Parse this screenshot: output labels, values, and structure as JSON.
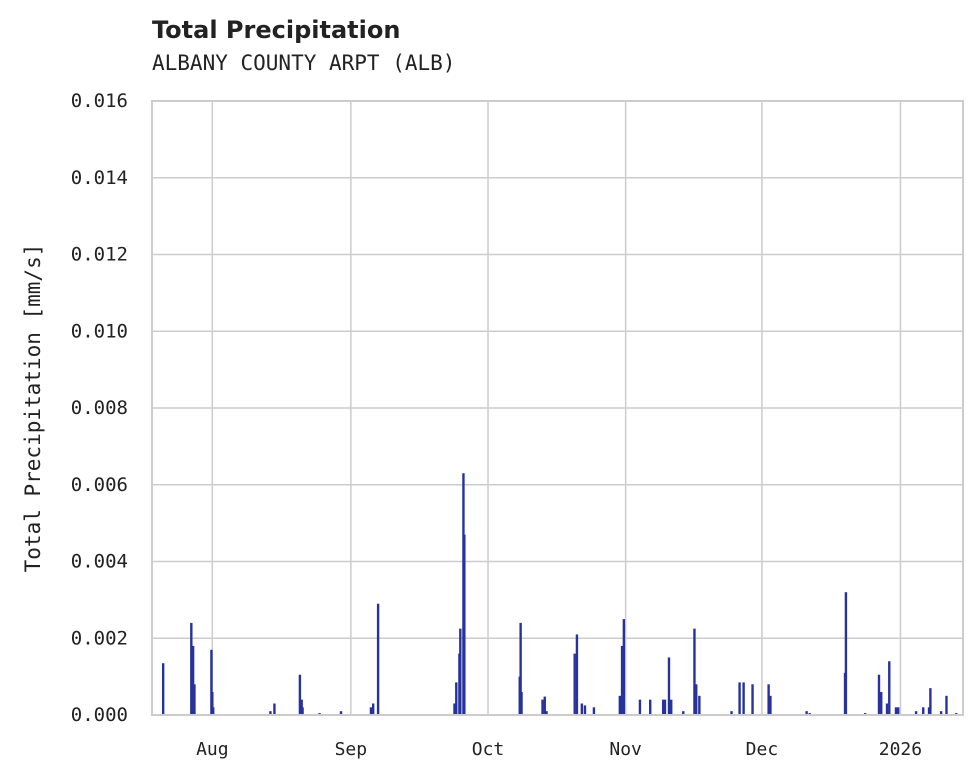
{
  "chart_data": {
    "type": "bar",
    "title": "Total Precipitation",
    "subtitle": "ALBANY COUNTY ARPT (ALB)",
    "xlabel": "",
    "ylabel": "Total Precipitation [mm/s]",
    "x_units": "days since 2025-08-01",
    "xlim": [
      -13.5,
      168
    ],
    "ylim": [
      0,
      0.016
    ],
    "grid": true,
    "color": "#27339a",
    "yticks": [
      "0.000",
      "0.002",
      "0.004",
      "0.006",
      "0.008",
      "0.010",
      "0.012",
      "0.014",
      "0.016"
    ],
    "xticks": [
      {
        "label": "Aug",
        "day": 0
      },
      {
        "label": "Sep",
        "day": 31
      },
      {
        "label": "Oct",
        "day": 61.7
      },
      {
        "label": "Nov",
        "day": 92.5
      },
      {
        "label": "Dec",
        "day": 123
      },
      {
        "label": "2026",
        "day": 154
      }
    ],
    "points": [
      [
        -11.0,
        0.00135
      ],
      [
        -4.7,
        0.0024
      ],
      [
        -4.3,
        0.0018
      ],
      [
        -4.0,
        0.0008
      ],
      [
        -0.2,
        0.0017
      ],
      [
        0,
        0.0006
      ],
      [
        0.2,
        0.0002
      ],
      [
        13.0,
        0.0001
      ],
      [
        13.9,
        0.0003
      ],
      [
        19.6,
        0.00105
      ],
      [
        20.0,
        0.0004
      ],
      [
        20.2,
        0.0002
      ],
      [
        24.0,
        5e-05
      ],
      [
        28.8,
        0.0001
      ],
      [
        35.5,
        0.0002
      ],
      [
        36.0,
        0.0003
      ],
      [
        37.1,
        0.0029
      ],
      [
        54.2,
        0.0003
      ],
      [
        54.6,
        0.00085
      ],
      [
        55.3,
        0.0016
      ],
      [
        55.5,
        0.00225
      ],
      [
        56.2,
        0.0063
      ],
      [
        56.4,
        0.0047
      ],
      [
        68.8,
        0.001
      ],
      [
        69.0,
        0.0024
      ],
      [
        69.2,
        0.0006
      ],
      [
        73.9,
        0.0004
      ],
      [
        74.4,
        0.00048
      ],
      [
        74.8,
        0.0001
      ],
      [
        81.1,
        0.0016
      ],
      [
        81.6,
        0.0021
      ],
      [
        82.7,
        0.0003
      ],
      [
        83.4,
        0.00025
      ],
      [
        85.4,
        0.0002
      ],
      [
        91.2,
        0.0005
      ],
      [
        91.7,
        0.0018
      ],
      [
        92.1,
        0.0025
      ],
      [
        95.7,
        0.0004
      ],
      [
        98.0,
        0.0004
      ],
      [
        100.9,
        0.0004
      ],
      [
        101.3,
        0.0004
      ],
      [
        102.2,
        0.0015
      ],
      [
        102.7,
        0.0004
      ],
      [
        105.4,
        0.0001
      ],
      [
        107.9,
        0.00225
      ],
      [
        108.3,
        0.0008
      ],
      [
        109.0,
        0.0005
      ],
      [
        116.2,
        0.0001
      ],
      [
        118.0,
        0.00085
      ],
      [
        118.9,
        0.00085
      ],
      [
        120.9,
        0.0008
      ],
      [
        124.5,
        0.0008
      ],
      [
        124.9,
        0.0005
      ],
      [
        133.0,
        0.0001
      ],
      [
        133.7,
        5e-05
      ],
      [
        141.6,
        0.0011
      ],
      [
        141.8,
        0.0032
      ],
      [
        146.1,
        5e-05
      ],
      [
        149.2,
        0.00105
      ],
      [
        149.7,
        0.0006
      ],
      [
        151.0,
        0.0003
      ],
      [
        151.5,
        0.0014
      ],
      [
        153.0,
        0.0002
      ],
      [
        153.5,
        0.0002
      ],
      [
        157.5,
        0.0001
      ],
      [
        159.1,
        0.0002
      ],
      [
        160.4,
        0.0002
      ],
      [
        160.7,
        0.0007
      ],
      [
        163.1,
        0.0001
      ],
      [
        164.3,
        0.0005
      ],
      [
        166.5,
        5e-05
      ]
    ]
  }
}
